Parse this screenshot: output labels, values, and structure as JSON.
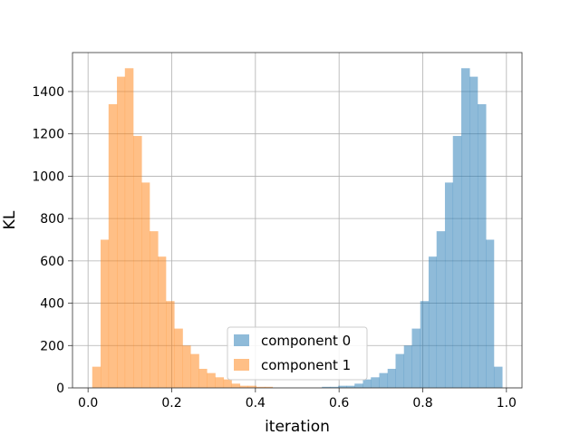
{
  "chart_data": {
    "type": "histogram",
    "title": "",
    "xlabel": "iteration",
    "ylabel": "KL",
    "xlim": [
      -0.0372,
      1.0372
    ],
    "ylim": [
      0,
      1584
    ],
    "xticks": [
      "0.0",
      "0.2",
      "0.4",
      "0.6",
      "0.8",
      "1.0"
    ],
    "yticks": [
      "0",
      "200",
      "400",
      "600",
      "800",
      "1000",
      "1200",
      "1400"
    ],
    "grid": true,
    "legend_position": "lower center",
    "bin_width": 0.0196,
    "series": [
      {
        "name": "component 0",
        "color": "#1f77b4",
        "opacity": 0.5,
        "bins": [
          [
            0.559,
            0.578,
            5
          ],
          [
            0.578,
            0.598,
            5
          ],
          [
            0.598,
            0.618,
            10
          ],
          [
            0.618,
            0.637,
            10
          ],
          [
            0.637,
            0.657,
            20
          ],
          [
            0.657,
            0.676,
            40
          ],
          [
            0.676,
            0.696,
            50
          ],
          [
            0.696,
            0.716,
            70
          ],
          [
            0.716,
            0.735,
            90
          ],
          [
            0.735,
            0.755,
            160
          ],
          [
            0.755,
            0.774,
            200
          ],
          [
            0.774,
            0.794,
            280
          ],
          [
            0.794,
            0.814,
            410
          ],
          [
            0.814,
            0.833,
            620
          ],
          [
            0.833,
            0.853,
            740
          ],
          [
            0.853,
            0.872,
            970
          ],
          [
            0.872,
            0.892,
            1190
          ],
          [
            0.892,
            0.912,
            1510
          ],
          [
            0.912,
            0.931,
            1470
          ],
          [
            0.931,
            0.951,
            1340
          ],
          [
            0.951,
            0.97,
            700
          ],
          [
            0.97,
            0.99,
            100
          ]
        ]
      },
      {
        "name": "component 1",
        "color": "#ff7f0e",
        "opacity": 0.5,
        "bins": [
          [
            0.01,
            0.03,
            100
          ],
          [
            0.03,
            0.049,
            700
          ],
          [
            0.049,
            0.069,
            1340
          ],
          [
            0.069,
            0.088,
            1470
          ],
          [
            0.088,
            0.108,
            1510
          ],
          [
            0.108,
            0.128,
            1190
          ],
          [
            0.128,
            0.147,
            970
          ],
          [
            0.147,
            0.167,
            740
          ],
          [
            0.167,
            0.186,
            620
          ],
          [
            0.186,
            0.206,
            410
          ],
          [
            0.206,
            0.226,
            280
          ],
          [
            0.226,
            0.245,
            200
          ],
          [
            0.245,
            0.265,
            160
          ],
          [
            0.265,
            0.284,
            90
          ],
          [
            0.284,
            0.304,
            70
          ],
          [
            0.304,
            0.324,
            50
          ],
          [
            0.324,
            0.343,
            40
          ],
          [
            0.343,
            0.363,
            20
          ],
          [
            0.363,
            0.382,
            10
          ],
          [
            0.382,
            0.402,
            10
          ],
          [
            0.402,
            0.422,
            5
          ],
          [
            0.422,
            0.441,
            5
          ]
        ]
      }
    ]
  }
}
